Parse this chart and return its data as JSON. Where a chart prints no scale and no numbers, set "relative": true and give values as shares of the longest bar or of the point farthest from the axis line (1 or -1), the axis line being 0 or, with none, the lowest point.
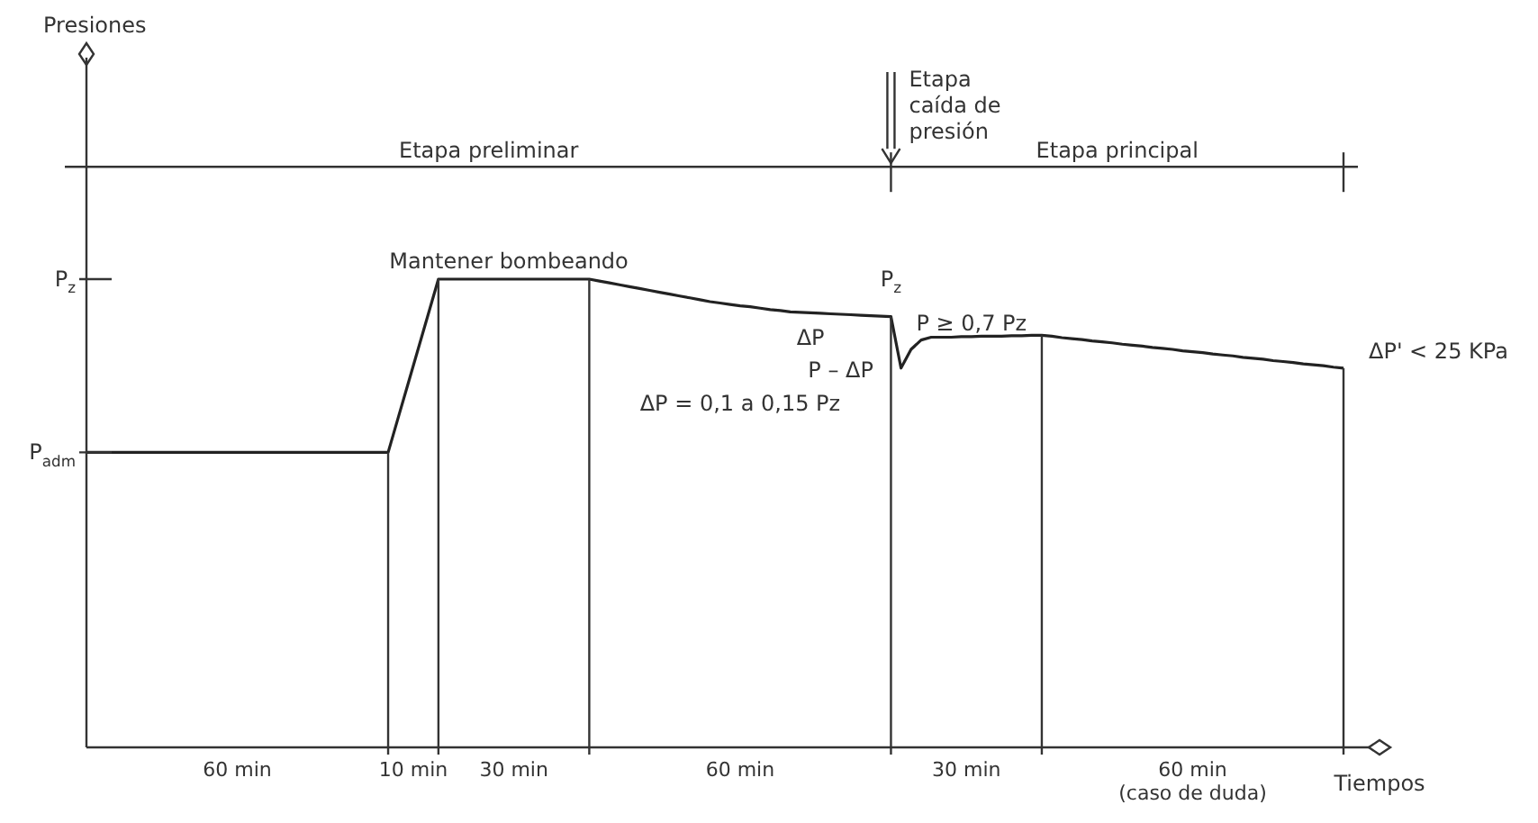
{
  "chart_data": {
    "type": "line",
    "relative": true,
    "xlabel": "Tiempos",
    "categories": [
      null,
      null,
      null,
      null,
      null,
      null,
      null,
      null,
      null,
      null,
      null,
      null,
      null,
      null,
      null,
      null,
      null,
      null,
      null,
      null,
      null,
      null,
      null,
      null,
      null,
      null,
      null,
      null,
      null,
      null,
      null,
      null,
      null,
      null,
      null,
      null,
      null,
      null,
      null,
      null,
      null,
      null,
      null,
      null,
      null,
      null,
      null,
      null,
      null,
      null,
      null,
      null,
      null,
      null,
      null,
      null,
      null,
      null,
      null,
      null,
      null,
      null,
      null,
      null,
      null,
      null,
      null,
      null,
      null,
      null,
      null,
      null,
      null,
      null,
      null,
      null,
      null,
      null,
      null,
      null,
      null,
      null,
      null,
      null,
      null,
      null,
      null,
      null,
      null,
      null,
      null,
      null,
      null,
      null,
      null,
      null,
      null,
      null,
      null,
      null,
      null,
      null,
      null,
      null,
      null,
      null,
      null,
      null,
      null,
      null,
      null,
      null,
      null,
      null,
      null,
      null,
      null,
      null,
      null,
      null,
      null,
      null,
      null,
      null,
      null,
      null
    ],
    "series": [
      {
        "color": "#222222",
        "values": [
          0.63,
          0.63,
          0.63,
          0.63,
          0.63,
          0.63,
          0.63,
          0.63,
          0.63,
          0.63,
          0.63,
          0.63,
          0.63,
          0.63,
          0.63,
          0.63,
          0.63,
          0.63,
          0.63,
          0.63,
          0.63,
          0.63,
          0.63,
          0.63,
          0.63,
          0.63,
          0.63,
          0.63,
          0.63,
          0.63,
          0.63,
          0.704,
          0.778,
          0.852,
          0.926,
          1,
          1,
          1,
          1,
          1,
          1,
          1,
          1,
          1,
          1,
          1,
          1,
          1,
          1,
          1,
          1,
          0.996,
          0.992,
          0.988,
          0.984,
          0.98,
          0.976,
          0.972,
          0.968,
          0.964,
          0.96,
          0.956,
          0.952,
          0.949,
          0.946,
          0.943,
          0.941,
          0.938,
          0.935,
          0.933,
          0.93,
          0.929,
          0.928,
          0.927,
          0.926,
          0.925,
          0.924,
          0.923,
          0.922,
          0.921,
          0.92,
          0.81,
          0.85,
          0.87,
          0.876,
          0.876,
          0.876,
          0.877,
          0.877,
          0.878,
          0.878,
          0.878,
          0.879,
          0.879,
          0.88,
          0.88,
          0.878,
          0.875,
          0.873,
          0.871,
          0.868,
          0.866,
          0.864,
          0.861,
          0.859,
          0.857,
          0.854,
          0.852,
          0.85,
          0.847,
          0.845,
          0.843,
          0.84,
          0.838,
          0.836,
          0.833,
          0.831,
          0.829,
          0.826,
          0.824,
          0.822,
          0.819,
          0.817,
          0.815,
          0.812,
          0.81
        ]
      }
    ],
    "tick_labels": false,
    "legend": false,
    "marker": "none",
    "line_style": "solid",
    "ref_lines": [
      {
        "axis": "y",
        "value": 1,
        "label": "P$_{z}$"
      },
      {
        "axis": "y",
        "value": 0.63,
        "label": "P$_{adm}$"
      }
    ],
    "annotations": [
      "Etapa preliminar",
      "Etapa principal",
      "Etapa\ncaída de\npresión",
      "Mantener bombeando",
      "ΔP",
      "ΔP = 0,1 a 0,15 Pz",
      "P$_{z}$",
      "P – ΔP",
      "P ≥ 0,7 Pz",
      "ΔP' < 25 KPa",
      "60 min",
      "10 min",
      "30 min",
      "60 min",
      "30 min",
      "60 min\n(caso de duda)",
      "Presiones"
    ]
  }
}
